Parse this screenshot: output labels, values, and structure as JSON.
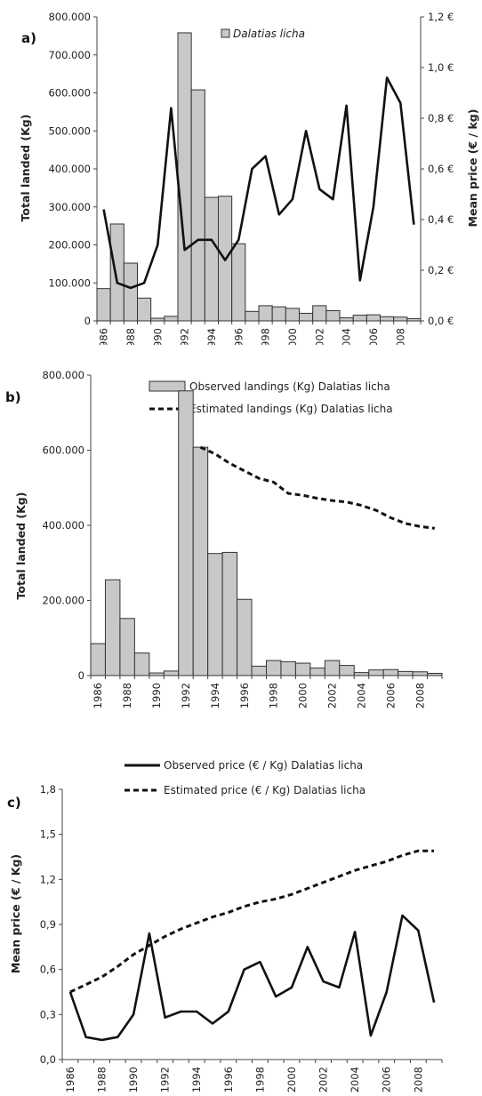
{
  "chart_data": [
    {
      "panel": "a)",
      "type": "bar+line",
      "x": [
        "1986",
        "1987",
        "1988",
        "1989",
        "1990",
        "1991",
        "1992",
        "1993",
        "1994",
        "1995",
        "1996",
        "1997",
        "1998",
        "1999",
        "2000",
        "2001",
        "2002",
        "2003",
        "2004",
        "2005",
        "2006",
        "2007",
        "2008",
        "2009"
      ],
      "x_tick_labels": [
        "1986",
        "1988",
        "1990",
        "1992",
        "1994",
        "1996",
        "1998",
        "2000",
        "2002",
        "2004",
        "2006",
        "2008"
      ],
      "series": [
        {
          "name": "Dalatias licha",
          "type": "bar",
          "axis": "left",
          "values": [
            85000,
            255000,
            152000,
            60000,
            7000,
            12000,
            758000,
            608000,
            325000,
            328000,
            203000,
            25000,
            40000,
            37000,
            33000,
            20000,
            40000,
            27000,
            8000,
            15000,
            16000,
            11000,
            10000,
            6000
          ]
        },
        {
          "name": "",
          "type": "line",
          "axis": "right",
          "values": [
            0.44,
            0.15,
            0.13,
            0.15,
            0.3,
            0.84,
            0.28,
            0.32,
            0.32,
            0.24,
            0.32,
            0.6,
            0.65,
            0.42,
            0.48,
            0.75,
            0.52,
            0.48,
            0.85,
            0.16,
            0.45,
            0.96,
            0.86,
            0.38
          ]
        }
      ],
      "ylabel": "Total landed (Kg)",
      "y2label": "Mean price (€ / kg)",
      "ylim": [
        0,
        800000
      ],
      "y2lim": [
        0,
        1.2
      ],
      "y_ticks": [
        "0",
        "100.000",
        "200.000",
        "300.000",
        "400.000",
        "500.000",
        "600.000",
        "700.000",
        "800.000"
      ],
      "y2_ticks": [
        "0,0 €",
        "0,2 €",
        "0,4 €",
        "0,6 €",
        "0,8 €",
        "1,0 €",
        "1,2 €"
      ],
      "legend": "top"
    },
    {
      "panel": "b)",
      "type": "bar+line",
      "x": [
        "1986",
        "1987",
        "1988",
        "1989",
        "1990",
        "1991",
        "1992",
        "1993",
        "1994",
        "1995",
        "1996",
        "1997",
        "1998",
        "1999",
        "2000",
        "2001",
        "2002",
        "2003",
        "2004",
        "2005",
        "2006",
        "2007",
        "2008",
        "2009"
      ],
      "x_tick_labels": [
        "1986",
        "1988",
        "1990",
        "1992",
        "1994",
        "1996",
        "1998",
        "2000",
        "2002",
        "2004",
        "2006",
        "2008"
      ],
      "series": [
        {
          "name": "Observed landings (Kg) Dalatias licha",
          "type": "bar",
          "values": [
            85000,
            255000,
            152000,
            60000,
            7000,
            12000,
            758000,
            608000,
            325000,
            328000,
            203000,
            25000,
            40000,
            37000,
            33000,
            20000,
            40000,
            27000,
            8000,
            15000,
            16000,
            11000,
            10000,
            6000
          ]
        },
        {
          "name": "Estimated landings (Kg) Dalatias licha",
          "type": "line",
          "style": "dashed",
          "values": [
            null,
            null,
            null,
            null,
            null,
            null,
            null,
            608000,
            590000,
            565000,
            545000,
            525000,
            515000,
            485000,
            480000,
            472000,
            466000,
            462000,
            453000,
            440000,
            420000,
            405000,
            397000,
            392000
          ]
        }
      ],
      "ylabel": "Total landed (Kg)",
      "ylim": [
        0,
        800000
      ],
      "y_ticks": [
        "0",
        "200.000",
        "400.000",
        "600.000",
        "800.000"
      ],
      "legend": "top"
    },
    {
      "panel": "c)",
      "type": "line",
      "x": [
        "1986",
        "1987",
        "1988",
        "1989",
        "1990",
        "1991",
        "1992",
        "1993",
        "1994",
        "1995",
        "1996",
        "1997",
        "1998",
        "1999",
        "2000",
        "2001",
        "2002",
        "2003",
        "2004",
        "2005",
        "2006",
        "2007",
        "2008",
        "2009"
      ],
      "x_tick_labels": [
        "1986",
        "1988",
        "1990",
        "1992",
        "1994",
        "1996",
        "1998",
        "2000",
        "2002",
        "2004",
        "2006",
        "2008"
      ],
      "series": [
        {
          "name": "Observed price (€ / Kg) Dalatias licha",
          "style": "solid",
          "values": [
            0.45,
            0.15,
            0.13,
            0.15,
            0.3,
            0.84,
            0.28,
            0.32,
            0.32,
            0.24,
            0.32,
            0.6,
            0.65,
            0.42,
            0.48,
            0.75,
            0.52,
            0.48,
            0.85,
            0.16,
            0.45,
            0.96,
            0.86,
            0.38
          ]
        },
        {
          "name": "Estimated price (€ / Kg) Dalatias licha",
          "style": "dashed",
          "values": [
            0.45,
            0.5,
            0.55,
            0.62,
            0.7,
            0.76,
            0.82,
            0.87,
            0.91,
            0.95,
            0.98,
            1.02,
            1.05,
            1.07,
            1.1,
            1.14,
            1.18,
            1.22,
            1.26,
            1.29,
            1.32,
            1.36,
            1.39,
            1.39
          ]
        }
      ],
      "ylabel": "Mean price (€ / Kg)",
      "ylim": [
        0,
        1.8
      ],
      "y_ticks": [
        "0,0",
        "0,3",
        "0,6",
        "0,9",
        "1,2",
        "1,5",
        "1,8"
      ],
      "legend": "top"
    }
  ]
}
